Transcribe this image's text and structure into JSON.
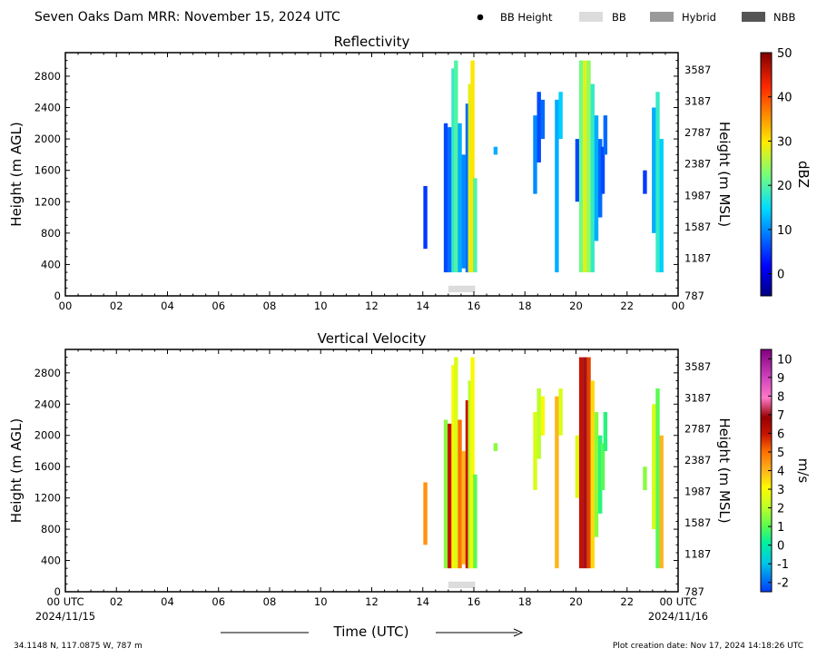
{
  "header": {
    "title": "Seven Oaks Dam MRR:  November 15, 2024 UTC",
    "legend": [
      {
        "label": "BB Height",
        "kind": "dot",
        "color": "#000000"
      },
      {
        "label": "BB",
        "kind": "box",
        "color": "#dcdcdc"
      },
      {
        "label": "Hybrid",
        "kind": "box",
        "color": "#999999"
      },
      {
        "label": "NBB",
        "kind": "box",
        "color": "#555555"
      }
    ]
  },
  "footer": {
    "location": "34.1148 N, 117.0875 W, 787 m",
    "creation_date": "Plot creation date: Nov 17, 2024 14:18:26 UTC"
  },
  "chart_data": [
    {
      "type": "heatmap",
      "title": "Reflectivity",
      "ylabel": "Height (m AGL)",
      "ylabel_right": "Height (m MSL)",
      "colorbar_label": "dBZ",
      "colorbar_ticks": [
        "0",
        "10",
        "20",
        "30",
        "40",
        "50"
      ],
      "colorbar_range": [
        -5,
        50
      ],
      "xlim": [
        0,
        24
      ],
      "ylim": [
        0,
        3100
      ],
      "x_tick_labels": [
        "00",
        "02",
        "04",
        "06",
        "08",
        "10",
        "12",
        "14",
        "16",
        "18",
        "20",
        "22",
        "00"
      ],
      "y_ticks": [
        0,
        400,
        800,
        1200,
        1600,
        2000,
        2400,
        2800
      ],
      "y_tick_labels": [
        "0",
        "400",
        "800",
        "1200",
        "1600",
        "2000",
        "2400",
        "2800"
      ],
      "y_right_tick_labels": [
        "787",
        "1187",
        "1587",
        "1987",
        "2387",
        "2787",
        "3187",
        "3587"
      ],
      "bb_bars": [
        {
          "x_start": 15.0,
          "x_end": 16.05,
          "type": "BB"
        }
      ],
      "echo_columns": [
        {
          "t": 14.1,
          "bottom": 600,
          "top": 1400,
          "value": 5
        },
        {
          "t": 14.9,
          "bottom": 300,
          "top": 2200,
          "value": 6
        },
        {
          "t": 15.05,
          "bottom": 300,
          "top": 2150,
          "value": 8
        },
        {
          "t": 15.2,
          "bottom": 300,
          "top": 2900,
          "value": 18
        },
        {
          "t": 15.3,
          "bottom": 300,
          "top": 3000,
          "value": 20
        },
        {
          "t": 15.45,
          "bottom": 300,
          "top": 2200,
          "value": 12
        },
        {
          "t": 15.6,
          "bottom": 350,
          "top": 1800,
          "value": 10
        },
        {
          "t": 15.75,
          "bottom": 300,
          "top": 2450,
          "value": 8
        },
        {
          "t": 15.85,
          "bottom": 300,
          "top": 2700,
          "value": 28
        },
        {
          "t": 15.95,
          "bottom": 300,
          "top": 3000,
          "value": 30
        },
        {
          "t": 16.05,
          "bottom": 300,
          "top": 1500,
          "value": 20
        },
        {
          "t": 16.85,
          "bottom": 1800,
          "top": 1900,
          "value": 12
        },
        {
          "t": 18.4,
          "bottom": 1300,
          "top": 2300,
          "value": 10
        },
        {
          "t": 18.55,
          "bottom": 1700,
          "top": 2600,
          "value": 6
        },
        {
          "t": 18.7,
          "bottom": 2000,
          "top": 2500,
          "value": 8
        },
        {
          "t": 19.25,
          "bottom": 300,
          "top": 2500,
          "value": 12
        },
        {
          "t": 19.4,
          "bottom": 2000,
          "top": 2600,
          "value": 14
        },
        {
          "t": 20.05,
          "bottom": 1200,
          "top": 2000,
          "value": 6
        },
        {
          "t": 20.2,
          "bottom": 300,
          "top": 3000,
          "value": 22
        },
        {
          "t": 20.35,
          "bottom": 300,
          "top": 3000,
          "value": 28
        },
        {
          "t": 20.5,
          "bottom": 300,
          "top": 3000,
          "value": 24
        },
        {
          "t": 20.65,
          "bottom": 300,
          "top": 2700,
          "value": 18
        },
        {
          "t": 20.8,
          "bottom": 700,
          "top": 2300,
          "value": 12
        },
        {
          "t": 20.95,
          "bottom": 1000,
          "top": 2000,
          "value": 8
        },
        {
          "t": 21.05,
          "bottom": 1300,
          "top": 1900,
          "value": 6
        },
        {
          "t": 21.15,
          "bottom": 1800,
          "top": 2300,
          "value": 8
        },
        {
          "t": 22.7,
          "bottom": 1300,
          "top": 1600,
          "value": 5
        },
        {
          "t": 23.05,
          "bottom": 800,
          "top": 2400,
          "value": 12
        },
        {
          "t": 23.2,
          "bottom": 300,
          "top": 2600,
          "value": 18
        },
        {
          "t": 23.35,
          "bottom": 300,
          "top": 2000,
          "value": 14
        }
      ]
    },
    {
      "type": "heatmap",
      "title": "Vertical Velocity",
      "ylabel": "Height (m AGL)",
      "ylabel_right": "Height (m MSL)",
      "xlabel": "Time (UTC)",
      "colorbar_label": "m/s",
      "colorbar_ticks": [
        "10",
        "9",
        "8",
        "7",
        "6",
        "5",
        "4",
        "3",
        "2",
        "1",
        "0",
        "-1",
        "-2"
      ],
      "colorbar_range": [
        -2.5,
        10.5
      ],
      "xlim": [
        0,
        24
      ],
      "ylim": [
        0,
        3100
      ],
      "x_tick_labels": [
        "00 UTC",
        "02",
        "04",
        "06",
        "08",
        "10",
        "12",
        "14",
        "16",
        "18",
        "20",
        "22",
        "00 UTC"
      ],
      "x_date_labels": [
        "2024/11/15",
        "2024/11/16"
      ],
      "y_ticks": [
        0,
        400,
        800,
        1200,
        1600,
        2000,
        2400,
        2800
      ],
      "y_tick_labels": [
        "0",
        "400",
        "800",
        "1200",
        "1600",
        "2000",
        "2400",
        "2800"
      ],
      "y_right_tick_labels": [
        "787",
        "1187",
        "1587",
        "1987",
        "2387",
        "2787",
        "3187",
        "3587"
      ],
      "bb_bars": [
        {
          "x_start": 15.0,
          "x_end": 16.05,
          "type": "BB"
        }
      ],
      "echo_columns": [
        {
          "t": 14.1,
          "bottom": 600,
          "top": 1400,
          "value": 4.5
        },
        {
          "t": 14.9,
          "bottom": 300,
          "top": 2200,
          "value": 1.5
        },
        {
          "t": 15.05,
          "bottom": 300,
          "top": 2150,
          "value": 6
        },
        {
          "t": 15.2,
          "bottom": 300,
          "top": 2900,
          "value": 3
        },
        {
          "t": 15.3,
          "bottom": 300,
          "top": 3000,
          "value": 2.5
        },
        {
          "t": 15.45,
          "bottom": 300,
          "top": 2200,
          "value": 5
        },
        {
          "t": 15.6,
          "bottom": 350,
          "top": 1800,
          "value": 4
        },
        {
          "t": 15.75,
          "bottom": 300,
          "top": 2450,
          "value": 6
        },
        {
          "t": 15.85,
          "bottom": 300,
          "top": 2700,
          "value": 2
        },
        {
          "t": 15.95,
          "bottom": 300,
          "top": 3000,
          "value": 3
        },
        {
          "t": 16.05,
          "bottom": 300,
          "top": 1500,
          "value": 1
        },
        {
          "t": 16.85,
          "bottom": 1800,
          "top": 1900,
          "value": 1.5
        },
        {
          "t": 18.4,
          "bottom": 1300,
          "top": 2300,
          "value": 2.5
        },
        {
          "t": 18.55,
          "bottom": 1700,
          "top": 2600,
          "value": 2
        },
        {
          "t": 18.7,
          "bottom": 2000,
          "top": 2500,
          "value": 3
        },
        {
          "t": 19.25,
          "bottom": 300,
          "top": 2500,
          "value": 4
        },
        {
          "t": 19.4,
          "bottom": 2000,
          "top": 2600,
          "value": 2.5
        },
        {
          "t": 20.05,
          "bottom": 1200,
          "top": 2000,
          "value": 2.5
        },
        {
          "t": 20.2,
          "bottom": 300,
          "top": 3000,
          "value": 6
        },
        {
          "t": 20.35,
          "bottom": 300,
          "top": 3000,
          "value": 7
        },
        {
          "t": 20.5,
          "bottom": 300,
          "top": 3000,
          "value": 5.5
        },
        {
          "t": 20.65,
          "bottom": 300,
          "top": 2700,
          "value": 3.5
        },
        {
          "t": 20.8,
          "bottom": 700,
          "top": 2300,
          "value": 1.5
        },
        {
          "t": 20.95,
          "bottom": 1000,
          "top": 2000,
          "value": 0.5
        },
        {
          "t": 21.05,
          "bottom": 1300,
          "top": 1900,
          "value": 1
        },
        {
          "t": 21.15,
          "bottom": 1800,
          "top": 2300,
          "value": 0.5
        },
        {
          "t": 22.7,
          "bottom": 1300,
          "top": 1600,
          "value": 1.5
        },
        {
          "t": 23.05,
          "bottom": 800,
          "top": 2400,
          "value": 2.5
        },
        {
          "t": 23.2,
          "bottom": 300,
          "top": 2600,
          "value": 1
        },
        {
          "t": 23.35,
          "bottom": 300,
          "top": 2000,
          "value": 4
        }
      ]
    }
  ]
}
